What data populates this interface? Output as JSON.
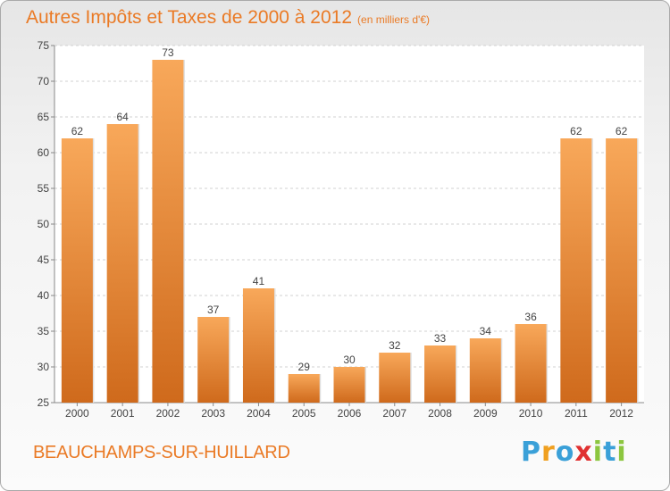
{
  "title": "Autres Impôts et Taxes de 2000 à 2012",
  "unit": "(en milliers d'€)",
  "commune": "BEAUCHAMPS-SUR-HUILLARD",
  "logo": {
    "letters": [
      "P",
      "r",
      "o",
      "x",
      "i",
      "t",
      "i"
    ],
    "colors": [
      "#3aa0d8",
      "#f0a020",
      "#3aa0d8",
      "#e03030",
      "#8cc63f",
      "#3aa0d8",
      "#8cc63f"
    ]
  },
  "colors": {
    "accent": "#ea7a25",
    "bar_top": "#f8a85a",
    "bar_bottom": "#cf6a1c"
  },
  "chart_data": {
    "type": "bar",
    "categories": [
      "2000",
      "2001",
      "2002",
      "2003",
      "2004",
      "2005",
      "2006",
      "2007",
      "2008",
      "2009",
      "2010",
      "2011",
      "2012"
    ],
    "values": [
      62,
      64,
      73,
      37,
      41,
      29,
      30,
      32,
      33,
      34,
      36,
      62,
      62
    ],
    "title": "Autres Impôts et Taxes de 2000 à 2012",
    "xlabel": "",
    "ylabel": "",
    "ylim": [
      25,
      75
    ],
    "yticks": [
      25,
      30,
      35,
      40,
      45,
      50,
      55,
      60,
      65,
      70,
      75
    ],
    "grid": "horizontal-dashed",
    "legend": "none"
  }
}
